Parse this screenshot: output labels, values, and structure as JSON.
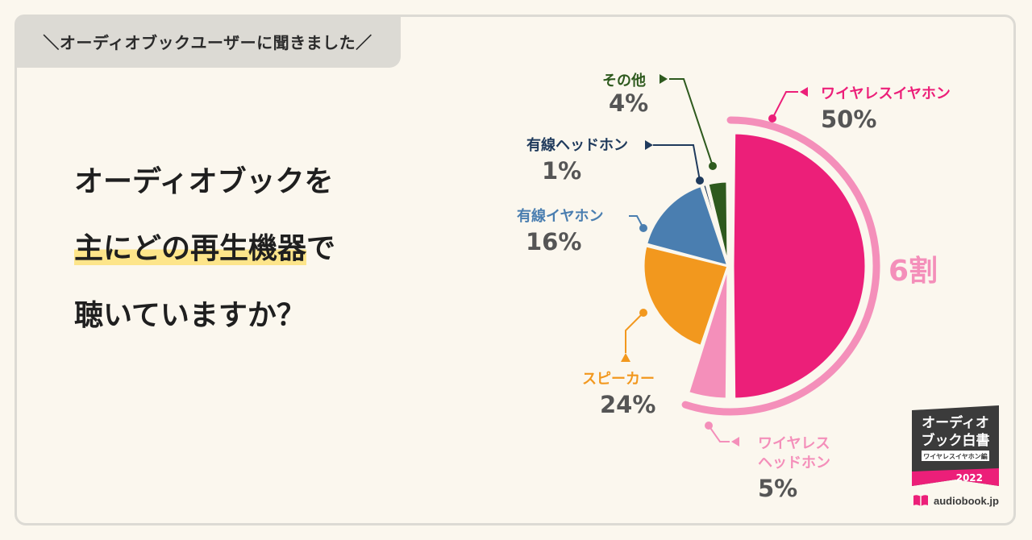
{
  "header_tag": "＼オーディオブックユーザーに聞きました／",
  "question": {
    "line1": "オーディオブックを",
    "line2_highlight": "主にどの再生機器",
    "line2_rest": "で",
    "line3": "聴いていますか？"
  },
  "chart_data": {
    "type": "pie",
    "slices": [
      {
        "label": "ワイヤレスイヤホン",
        "value": 50,
        "display": "50%",
        "color": "#ec1f79"
      },
      {
        "label": "ワイヤレス\nヘッドホン",
        "value": 5,
        "display": "5%",
        "color": "#f48fba"
      },
      {
        "label": "スピーカー",
        "value": 24,
        "display": "24%",
        "color": "#f2981e"
      },
      {
        "label": "有線イヤホン",
        "value": 16,
        "display": "16%",
        "color": "#4a7eb0"
      },
      {
        "label": "有線ヘッドホン",
        "value": 1,
        "display": "1%",
        "color": "#1f3a5c"
      },
      {
        "label": "その他",
        "value": 4,
        "display": "4%",
        "color": "#2e5a1e"
      }
    ],
    "annotation": "6割",
    "annotation_color": "#f48fba"
  },
  "badge": {
    "line1": "オーディオ",
    "line2": "ブック白書",
    "subtitle": "ワイヤレスイヤホン編",
    "year": "2022"
  },
  "brand": "audiobook.jp",
  "colors": {
    "background": "#fbf7ee",
    "tag_bg": "#dcdad4",
    "highlight": "#fde58a",
    "value_text": "#555555"
  }
}
